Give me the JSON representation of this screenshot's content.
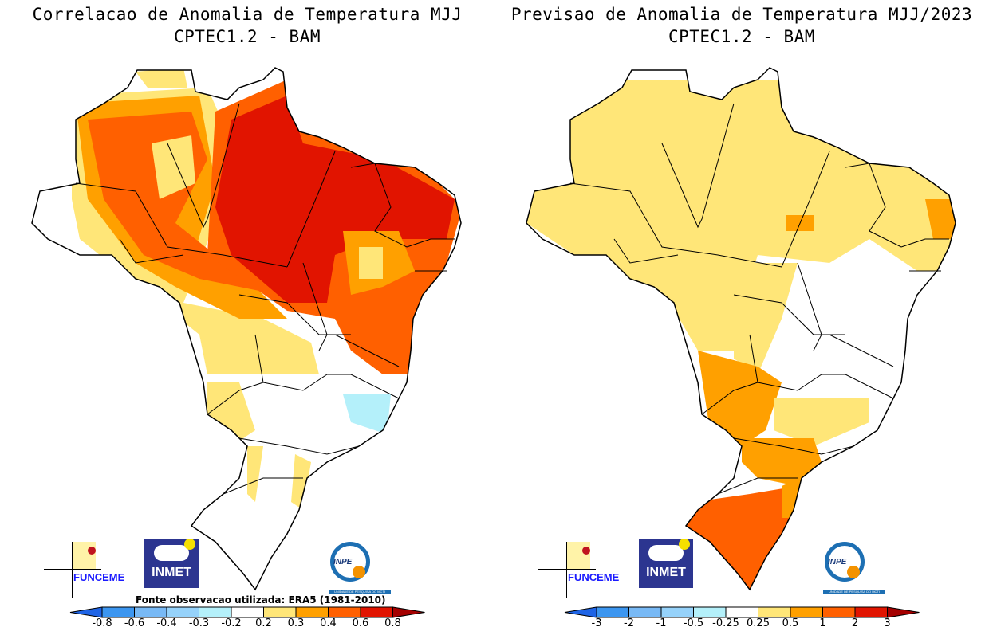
{
  "left_panel": {
    "title_line1": "Correlacao de Anomalia de Temperatura MJJ",
    "title_line2": "CPTEC1.2 - BAM",
    "source_note": "Fonte observacao utilizada: ERA5 (1981-2010)",
    "colorbar": {
      "labels": [
        "-0.8",
        "-0.6",
        "-0.4",
        "-0.3",
        "-0.2",
        "0.2",
        "0.3",
        "0.4",
        "0.6",
        "0.8"
      ]
    }
  },
  "right_panel": {
    "title_line1": "Previsao de Anomalia de Temperatura MJJ/2023",
    "title_line2": "CPTEC1.2 - BAM",
    "colorbar": {
      "labels": [
        "-3",
        "-2",
        "-1",
        "-0.5",
        "-0.25",
        "0.25",
        "0.5",
        "1",
        "2",
        "3"
      ]
    }
  },
  "colorbar_colors": [
    "#1e64e6",
    "#3c96f0",
    "#78b9f5",
    "#96d2fa",
    "#b4f0fa",
    "#ffffff",
    "#ffe678",
    "#ffa000",
    "#ff6000",
    "#e11400",
    "#a50000"
  ],
  "logos": {
    "funceme": "FUNCEME",
    "inmet": "INMET",
    "inpe": "INPE",
    "inpe_tagline": "UNIDADE DE PESQUISA DO MCTI"
  },
  "map_region": "Brazil"
}
